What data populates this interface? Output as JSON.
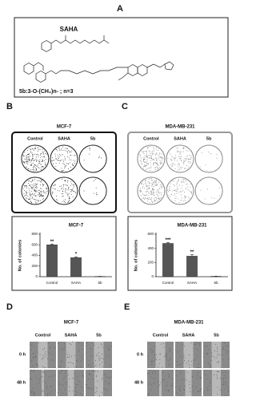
{
  "panel_a": {
    "label": "A",
    "title": "SAHA",
    "caption": "5b:3-O-(CH₂)n- ; n=3"
  },
  "panel_b": {
    "label": "B",
    "plate": {
      "title": "MCF-7",
      "columns": [
        "Control",
        "SAHA",
        "5b"
      ]
    },
    "chart": {
      "type": "bar",
      "title": "MCF-7",
      "y_label": "No. of colonies",
      "categories": [
        "Control",
        "SAHA",
        "5b"
      ],
      "values": [
        600,
        360,
        5
      ],
      "errors": [
        15,
        15,
        2
      ],
      "significance": [
        "**",
        "*",
        null
      ],
      "color": "#555555",
      "ylim": [
        0,
        800
      ],
      "yticks": [
        0,
        200,
        400,
        600,
        800
      ]
    }
  },
  "panel_c": {
    "label": "C",
    "plate": {
      "title": "MDA-MB-231",
      "columns": [
        "Control",
        "SAHA",
        "5b"
      ]
    },
    "chart": {
      "type": "bar",
      "title": "MDA-MB-231",
      "y_label": "No. of colonies",
      "categories": [
        "Control",
        "SAHA",
        "5b"
      ],
      "values": [
        470,
        290,
        5
      ],
      "errors": [
        12,
        20,
        2
      ],
      "significance": [
        "***",
        "**",
        null
      ],
      "color": "#555555",
      "ylim": [
        0,
        600
      ],
      "yticks": [
        0,
        200,
        400,
        600
      ]
    }
  },
  "panel_d": {
    "label": "D",
    "title": "MCF-7",
    "columns": [
      "Control",
      "SAHA",
      "5b"
    ],
    "rows": [
      "0 h",
      "48 h"
    ]
  },
  "panel_e": {
    "label": "E",
    "title": "MDA-MB-231",
    "columns": [
      "Control",
      "SAHA",
      "5b"
    ],
    "rows": [
      "0 h",
      "48 h"
    ]
  }
}
